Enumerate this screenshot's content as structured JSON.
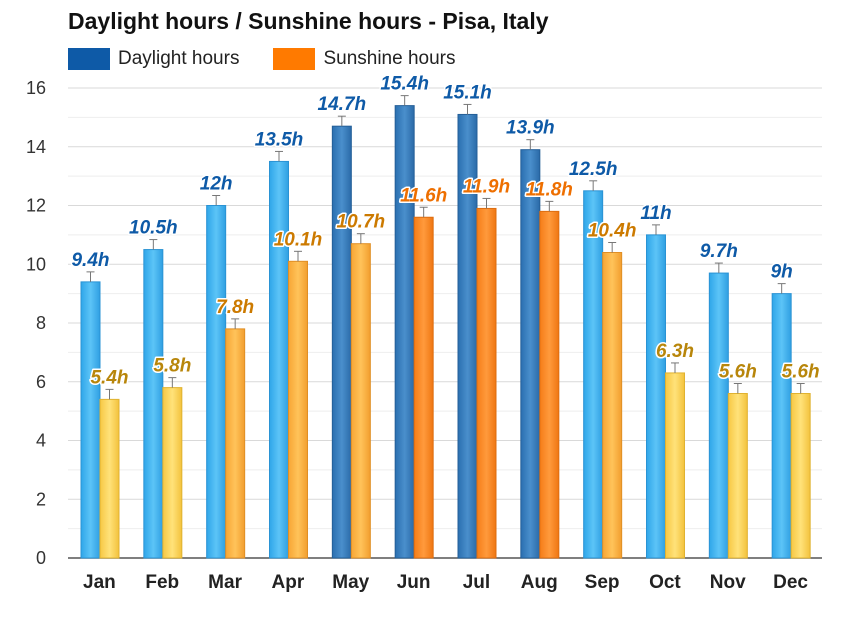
{
  "chart_data": {
    "type": "bar",
    "title": "Daylight hours / Sunshine hours - Pisa, Italy",
    "categories": [
      "Jan",
      "Feb",
      "Mar",
      "Apr",
      "May",
      "Jun",
      "Jul",
      "Aug",
      "Sep",
      "Oct",
      "Nov",
      "Dec"
    ],
    "series": [
      {
        "name": "Daylight hours",
        "values": [
          9.4,
          10.5,
          12,
          13.5,
          14.7,
          15.4,
          15.1,
          13.9,
          12.5,
          11,
          9.7,
          9
        ],
        "labels": [
          "9.4h",
          "10.5h",
          "12h",
          "13.5h",
          "14.7h",
          "15.4h",
          "15.1h",
          "13.9h",
          "12.5h",
          "11h",
          "9.7h",
          "9h"
        ],
        "legend_color": "#0e5aa7",
        "label_color": "#0e5aa7"
      },
      {
        "name": "Sunshine hours",
        "values": [
          5.4,
          5.8,
          7.8,
          10.1,
          10.7,
          11.6,
          11.9,
          11.8,
          10.4,
          6.3,
          5.6,
          5.6
        ],
        "labels": [
          "5.4h",
          "5.8h",
          "7.8h",
          "10.1h",
          "10.7h",
          "11.6h",
          "11.9h",
          "11.8h",
          "10.4h",
          "6.3h",
          "5.6h",
          "5.6h"
        ],
        "legend_color": "#ff7a00",
        "label_color": "#b8860b"
      }
    ],
    "ylim": [
      0,
      16
    ],
    "yticks": [
      "0",
      "2",
      "4",
      "6",
      "8",
      "10",
      "12",
      "14",
      "16"
    ],
    "grid": true,
    "legend_position": "top-left"
  }
}
